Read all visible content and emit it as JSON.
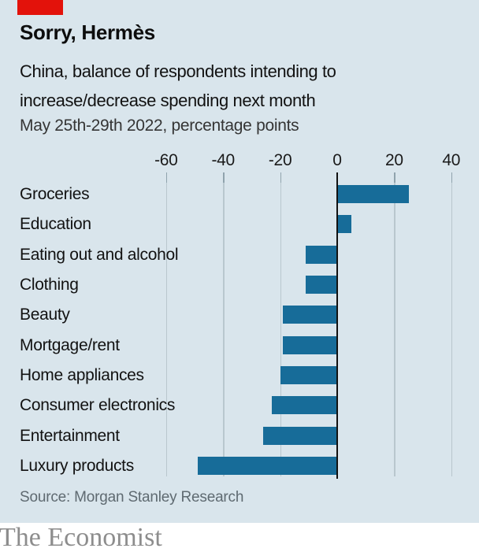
{
  "colors": {
    "background": "#d9e5ec",
    "accent_red": "#e3120b",
    "bar_blue": "#176c99"
  },
  "chart_data": {
    "type": "bar",
    "orientation": "horizontal",
    "title": "Sorry, Hermès",
    "subtitle": "China, balance of respondents intending to increase/decrease spending next month",
    "period_label": "May 25th-29th 2022, percentage points",
    "categories": [
      "Groceries",
      "Education",
      "Eating out and alcohol",
      "Clothing",
      "Beauty",
      "Mortgage/rent",
      "Home appliances",
      "Consumer electronics",
      "Entertainment",
      "Luxury products"
    ],
    "values": [
      25,
      5,
      -11,
      -11,
      -19,
      -19,
      -20,
      -23,
      -26,
      -49
    ],
    "x_ticks": [
      -60,
      -40,
      -20,
      0,
      20,
      40
    ],
    "xlim": [
      -60,
      40
    ],
    "grid": true,
    "legend": false,
    "source": "Source: Morgan Stanley Research"
  },
  "footer": {
    "brand": "The Economist"
  }
}
